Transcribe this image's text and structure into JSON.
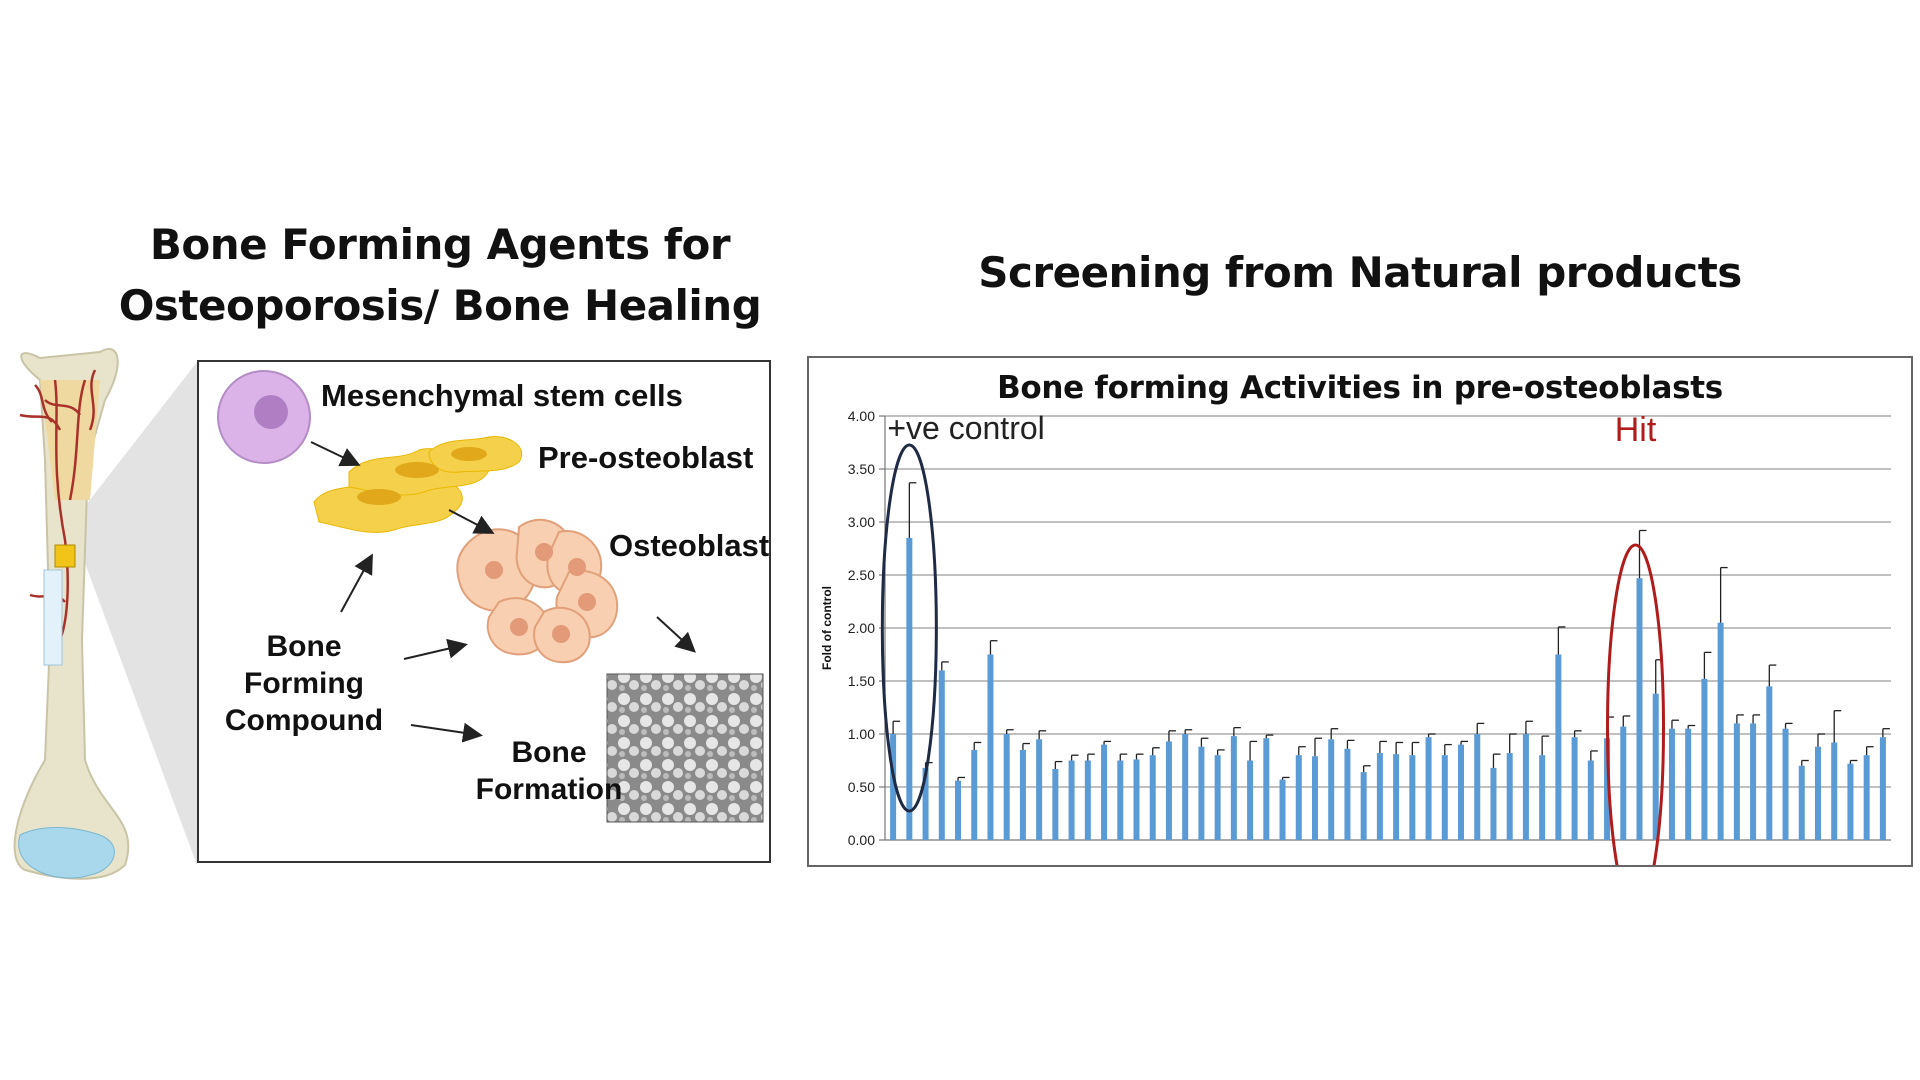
{
  "left_title": {
    "line1": "Bone Forming Agents for",
    "line2": "Osteoporosis/ Bone Healing"
  },
  "right_title": "Screening from Natural products",
  "pathway": {
    "msc": "Mesenchymal stem cells",
    "preosteoblast": "Pre-osteoblast",
    "osteoblast": "Osteoblast",
    "compound": [
      "Bone",
      "Forming",
      "Compound"
    ],
    "formation": [
      "Bone",
      "Formation"
    ]
  },
  "colors": {
    "bar": "#5b9bd5",
    "control_ellipse": "#1f2a44",
    "hit_ellipse": "#b01c1c",
    "hit_text": "#b01c1c",
    "cell_purple": "#dcb3e8",
    "preosteoblast": "#f5d04a",
    "osteoblast": "#f8cfb0"
  },
  "chart_data": {
    "type": "bar",
    "title": "Bone forming Activities in pre-osteoblasts",
    "ylabel": "Fold of control",
    "ylim": [
      0,
      4
    ],
    "yticks": [
      "0.00",
      "0.50",
      "1.00",
      "1.50",
      "2.00",
      "2.50",
      "3.00",
      "3.50",
      "4.00"
    ],
    "grid": true,
    "values": [
      1.0,
      2.85,
      0.68,
      1.6,
      0.56,
      0.85,
      1.75,
      1.0,
      0.85,
      0.95,
      0.67,
      0.75,
      0.75,
      0.9,
      0.75,
      0.76,
      0.8,
      0.93,
      1.0,
      0.88,
      0.8,
      0.98,
      0.75,
      0.96,
      0.57,
      0.8,
      0.79,
      0.95,
      0.86,
      0.64,
      0.82,
      0.81,
      0.8,
      0.97,
      0.8,
      0.9,
      1.0,
      0.68,
      0.82,
      1.0,
      0.8,
      1.75,
      0.97,
      0.75,
      0.96,
      1.07,
      2.47,
      1.38,
      1.05,
      1.05,
      1.52,
      2.05,
      1.1,
      1.1,
      1.45,
      1.05,
      0.7,
      0.88,
      0.92,
      0.72,
      0.8,
      0.97
    ],
    "errors": [
      0.12,
      0.52,
      0.05,
      0.08,
      0.03,
      0.07,
      0.13,
      0.04,
      0.06,
      0.08,
      0.07,
      0.05,
      0.06,
      0.03,
      0.06,
      0.05,
      0.07,
      0.1,
      0.04,
      0.08,
      0.05,
      0.08,
      0.18,
      0.03,
      0.02,
      0.08,
      0.17,
      0.1,
      0.08,
      0.06,
      0.11,
      0.11,
      0.12,
      0.03,
      0.1,
      0.03,
      0.1,
      0.13,
      0.18,
      0.12,
      0.18,
      0.26,
      0.06,
      0.09,
      0.2,
      0.1,
      0.45,
      0.32,
      0.08,
      0.03,
      0.25,
      0.52,
      0.08,
      0.08,
      0.2,
      0.05,
      0.05,
      0.12,
      0.3,
      0.03,
      0.08,
      0.08
    ],
    "annotations": {
      "control": "+ve control",
      "hit": "Hit"
    }
  }
}
